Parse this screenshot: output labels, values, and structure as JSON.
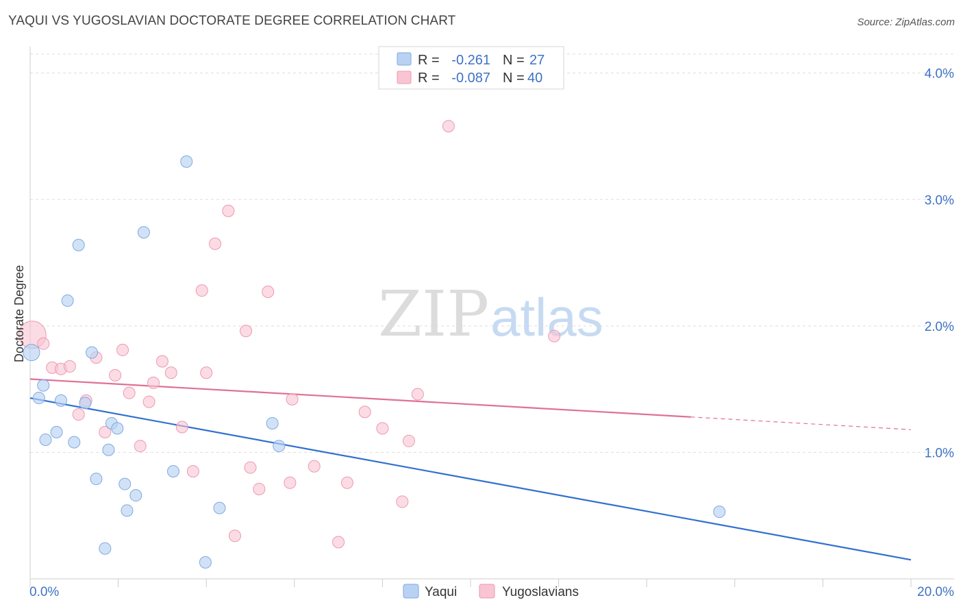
{
  "title": "YAQUI VS YUGOSLAVIAN DOCTORATE DEGREE CORRELATION CHART",
  "source": "Source: ZipAtlas.com",
  "watermark": {
    "zip": "ZIP",
    "atlas": "atlas"
  },
  "colors": {
    "yaqui_fill": "#b9d2f3",
    "yaqui_stroke": "#7ea9e2",
    "yaqui_line": "#2f6fd0",
    "yugo_fill": "#f9c5d3",
    "yugo_stroke": "#ec98b1",
    "yugo_line": "#e07094",
    "tick_text": "#3d72c6",
    "grid": "#dddddd"
  },
  "legend": {
    "rows": [
      {
        "r_label": "R =",
        "r_value": "-0.261",
        "n_label": "N =",
        "n_value": "27"
      },
      {
        "r_label": "R =",
        "r_value": "-0.087",
        "n_label": "N =",
        "n_value": "40"
      }
    ]
  },
  "bottom_legend": [
    "Yaqui",
    "Yugoslavians"
  ],
  "chart_data": {
    "type": "scatter",
    "xlabel": "",
    "ylabel": "Doctorate Degree",
    "xlim": [
      0,
      20
    ],
    "ylim": [
      0,
      4.15
    ],
    "x_tick_labels": [
      "0.0%",
      "20.0%"
    ],
    "y_ticks": [
      1,
      2,
      3,
      4
    ],
    "y_tick_labels": [
      "1.0%",
      "2.0%",
      "3.0%",
      "4.0%"
    ],
    "grid": "horizontal dashed",
    "legend_placement": "top-center",
    "series": [
      {
        "name": "Yaqui",
        "points": [
          [
            0.03,
            1.79
          ],
          [
            0.2,
            1.43
          ],
          [
            0.3,
            1.53
          ],
          [
            0.35,
            1.1
          ],
          [
            0.6,
            1.16
          ],
          [
            0.7,
            1.41
          ],
          [
            0.85,
            2.2
          ],
          [
            1.0,
            1.08
          ],
          [
            1.1,
            2.64
          ],
          [
            1.25,
            1.39
          ],
          [
            1.4,
            1.79
          ],
          [
            1.5,
            0.79
          ],
          [
            1.7,
            0.24
          ],
          [
            1.78,
            1.02
          ],
          [
            1.85,
            1.23
          ],
          [
            1.98,
            1.19
          ],
          [
            2.15,
            0.75
          ],
          [
            2.2,
            0.54
          ],
          [
            2.4,
            0.66
          ],
          [
            2.58,
            2.74
          ],
          [
            3.25,
            0.85
          ],
          [
            3.55,
            3.3
          ],
          [
            3.98,
            0.13
          ],
          [
            4.3,
            0.56
          ],
          [
            5.5,
            1.23
          ],
          [
            5.65,
            1.05
          ],
          [
            15.65,
            0.53
          ]
        ],
        "trend": {
          "x": [
            0,
            20
          ],
          "y": [
            1.43,
            0.15
          ]
        }
      },
      {
        "name": "Yugoslavians",
        "points": [
          [
            0.05,
            1.93
          ],
          [
            0.3,
            1.86
          ],
          [
            0.5,
            1.67
          ],
          [
            0.7,
            1.66
          ],
          [
            0.9,
            1.68
          ],
          [
            1.1,
            1.3
          ],
          [
            1.27,
            1.41
          ],
          [
            1.5,
            1.75
          ],
          [
            1.7,
            1.16
          ],
          [
            1.93,
            1.61
          ],
          [
            2.1,
            1.81
          ],
          [
            2.25,
            1.47
          ],
          [
            2.5,
            1.05
          ],
          [
            2.7,
            1.4
          ],
          [
            2.8,
            1.55
          ],
          [
            3.0,
            1.72
          ],
          [
            3.2,
            1.63
          ],
          [
            3.45,
            1.2
          ],
          [
            3.7,
            0.85
          ],
          [
            3.9,
            2.28
          ],
          [
            4.0,
            1.63
          ],
          [
            4.2,
            2.65
          ],
          [
            4.5,
            2.91
          ],
          [
            4.65,
            0.34
          ],
          [
            4.9,
            1.96
          ],
          [
            5.0,
            0.88
          ],
          [
            5.2,
            0.71
          ],
          [
            5.4,
            2.27
          ],
          [
            5.9,
            0.76
          ],
          [
            5.95,
            1.42
          ],
          [
            6.45,
            0.89
          ],
          [
            7.0,
            0.29
          ],
          [
            7.2,
            0.76
          ],
          [
            7.6,
            1.32
          ],
          [
            8.0,
            1.19
          ],
          [
            8.45,
            0.61
          ],
          [
            8.6,
            1.09
          ],
          [
            8.8,
            1.46
          ],
          [
            9.5,
            3.58
          ],
          [
            11.9,
            1.92
          ]
        ],
        "trend": {
          "x": [
            0,
            15
          ],
          "y": [
            1.58,
            1.28
          ]
        },
        "trend_dashed": {
          "x": [
            15,
            20
          ],
          "y": [
            1.28,
            1.18
          ]
        }
      }
    ]
  }
}
